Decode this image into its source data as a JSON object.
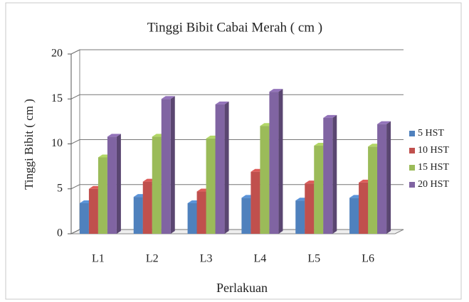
{
  "chart_data": {
    "type": "bar3d",
    "title": "Tinggi Bibit Cabai Merah ( cm )",
    "x_label": "Perlakuan",
    "y_label": "Tinggi Bibit ( cm )",
    "categories": [
      "L1",
      "L2",
      "L3",
      "L4",
      "L5",
      "L6"
    ],
    "series": [
      {
        "name": "5 HST",
        "color": "#4f81bd",
        "values": [
          3.4,
          4.1,
          3.4,
          4.0,
          3.7,
          4.0
        ]
      },
      {
        "name": "10 HST",
        "color": "#c0504d",
        "values": [
          5.0,
          5.8,
          4.7,
          6.9,
          5.6,
          5.7
        ]
      },
      {
        "name": "15 HST",
        "color": "#9bbb59",
        "values": [
          8.5,
          10.8,
          10.6,
          12.0,
          9.8,
          9.7
        ]
      },
      {
        "name": "20 HST",
        "color": "#8064a2",
        "values": [
          10.8,
          15.0,
          14.4,
          15.8,
          12.9,
          12.2
        ]
      }
    ],
    "ylim": [
      0,
      20
    ],
    "yticks": [
      0,
      5,
      10,
      15,
      20
    ],
    "grid": true,
    "legend": "right"
  }
}
